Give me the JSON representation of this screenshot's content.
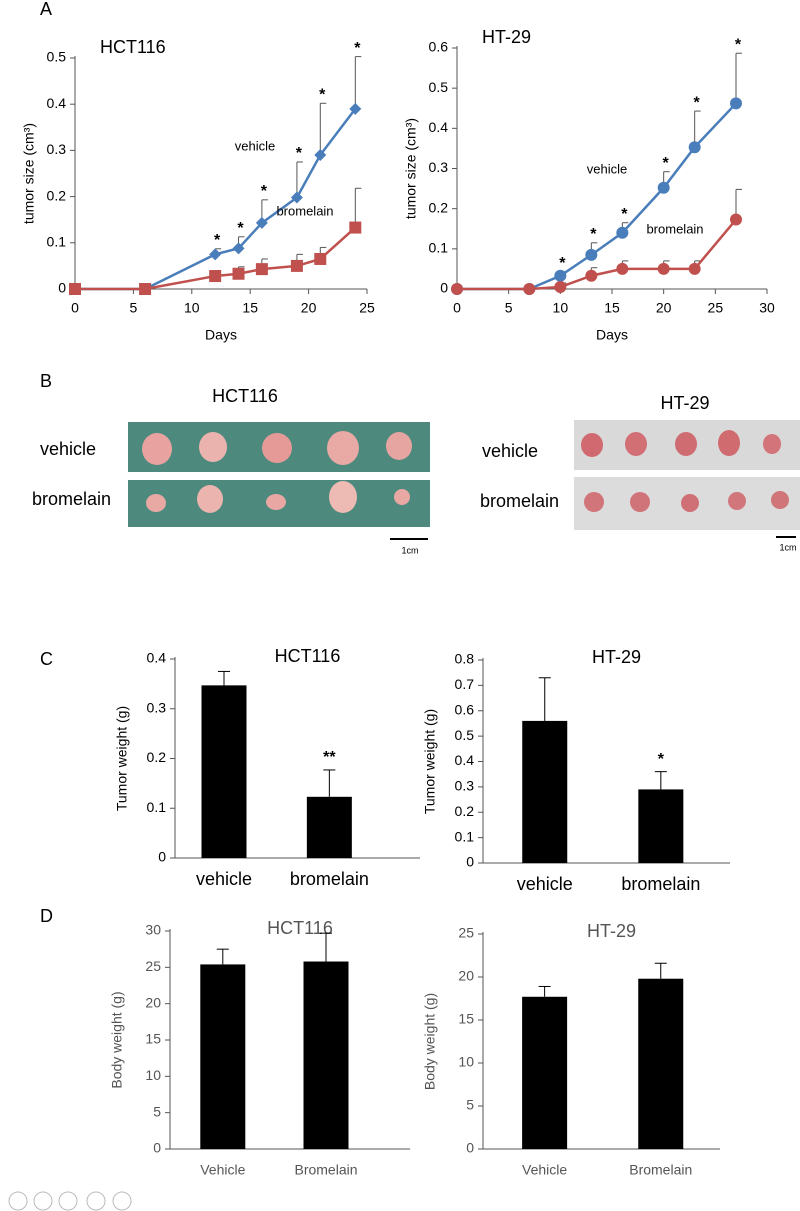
{
  "panels": [
    "A",
    "B",
    "C",
    "D"
  ],
  "photos": [
    {
      "title": "HCT116",
      "rows": [
        "vehicle",
        "bromelain"
      ],
      "scale": "1cm"
    },
    {
      "title": "HT-29",
      "rows": [
        "vehicle",
        "bromelain"
      ],
      "scale": "1cm"
    }
  ],
  "chart_data": [
    {
      "type": "line",
      "title": "HCT116",
      "x_label": "Days",
      "y_label": "tumor size (cm³)",
      "x": [
        0,
        6,
        12,
        14,
        16,
        19,
        21,
        24
      ],
      "series": [
        {
          "name": "vehicle",
          "color": "#4a7ebb",
          "marker": "diamond",
          "values": [
            0,
            0,
            0.075,
            0.088,
            0.143,
            0.198,
            0.29,
            0.39
          ],
          "errors": [
            null,
            null,
            0.012,
            0.025,
            0.05,
            0.077,
            0.112,
            0.113
          ]
        },
        {
          "name": "bromelain",
          "color": "#c0504d",
          "marker": "square",
          "values": [
            0,
            0,
            0.028,
            0.033,
            0.043,
            0.05,
            0.065,
            0.133
          ],
          "errors": [
            null,
            null,
            0.012,
            0.015,
            0.022,
            0.025,
            0.025,
            0.085
          ]
        }
      ],
      "significance": [
        null,
        null,
        "*",
        "*",
        "*",
        "*",
        "*",
        "*"
      ],
      "xlim": [
        0,
        25
      ],
      "xticks": [
        0,
        5,
        10,
        15,
        20,
        25
      ],
      "ylim": [
        0,
        0.5
      ],
      "yticks": [
        0,
        0.1,
        0.2,
        0.3,
        0.4,
        0.5
      ]
    },
    {
      "type": "line",
      "title": "HT-29",
      "x_label": "Days",
      "y_label": "tumor size (cm³)",
      "x": [
        0,
        7,
        10,
        13,
        16,
        20,
        23,
        27
      ],
      "series": [
        {
          "name": "vehicle",
          "color": "#4a7ebb",
          "marker": "circle",
          "values": [
            0,
            0,
            0.033,
            0.085,
            0.14,
            0.252,
            0.353,
            0.462
          ],
          "errors": [
            null,
            null,
            0.01,
            0.03,
            0.025,
            0.04,
            0.09,
            0.125
          ]
        },
        {
          "name": "bromelain",
          "color": "#c0504d",
          "marker": "circle",
          "values": [
            0,
            0,
            0.005,
            0.033,
            0.05,
            0.05,
            0.05,
            0.173
          ],
          "errors": [
            null,
            null,
            0.01,
            0.02,
            0.02,
            0.02,
            0.02,
            0.075
          ]
        }
      ],
      "significance": [
        null,
        null,
        "*",
        "*",
        "*",
        "*",
        "*",
        "*"
      ],
      "xlim": [
        0,
        30
      ],
      "xticks": [
        0,
        5,
        10,
        15,
        20,
        25,
        30
      ],
      "ylim": [
        0,
        0.6
      ],
      "yticks": [
        0,
        0.1,
        0.2,
        0.3,
        0.4,
        0.5,
        0.6
      ]
    },
    {
      "type": "bar",
      "title": "HCT116",
      "y_label": "Tumor weight (g)",
      "color": "#000000",
      "categories": [
        "vehicle",
        "bromelain"
      ],
      "values": [
        0.347,
        0.123
      ],
      "errors": [
        0.028,
        0.054
      ],
      "significance": [
        null,
        "**"
      ],
      "ylim": [
        0,
        0.4
      ],
      "yticks": [
        0,
        0.1,
        0.2,
        0.3,
        0.4
      ]
    },
    {
      "type": "bar",
      "title": "HT-29",
      "y_label": "Tumor weight (g)",
      "color": "#000000",
      "categories": [
        "vehicle",
        "bromelain"
      ],
      "values": [
        0.56,
        0.29
      ],
      "errors": [
        0.17,
        0.07
      ],
      "significance": [
        null,
        "*"
      ],
      "ylim": [
        0,
        0.8
      ],
      "yticks": [
        0,
        0.1,
        0.2,
        0.3,
        0.4,
        0.5,
        0.6,
        0.7,
        0.8
      ]
    },
    {
      "type": "bar",
      "title": "HCT116",
      "y_label": "Body weight (g)",
      "color": "#000000",
      "categories": [
        "Vehicle",
        "Bromelain"
      ],
      "values": [
        25.4,
        25.8
      ],
      "errors": [
        2.1,
        3.9
      ],
      "ylim": [
        0,
        30
      ],
      "yticks": [
        0,
        5,
        10,
        15,
        20,
        25,
        30
      ]
    },
    {
      "type": "bar",
      "title": "HT-29",
      "y_label": "Body weight (g)",
      "color": "#000000",
      "categories": [
        "Vehicle",
        "Bromelain"
      ],
      "values": [
        17.7,
        19.8
      ],
      "errors": [
        1.2,
        1.8
      ],
      "ylim": [
        0,
        25
      ],
      "yticks": [
        0,
        5,
        10,
        15,
        20,
        25
      ]
    }
  ]
}
